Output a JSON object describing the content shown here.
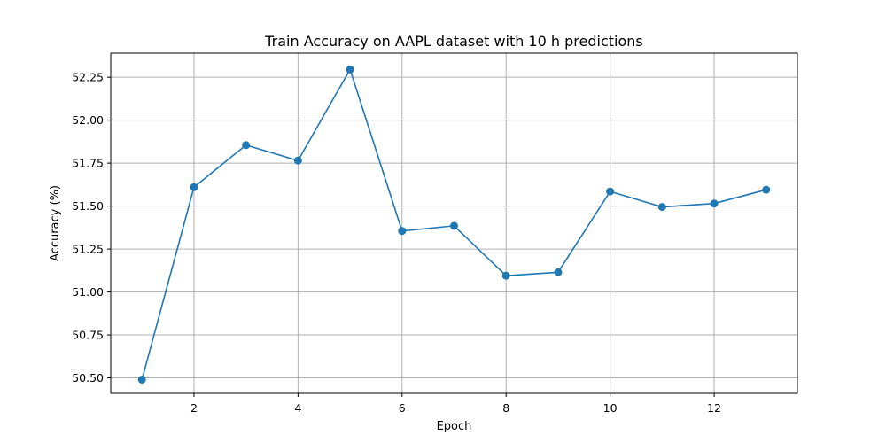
{
  "chart_data": {
    "type": "line",
    "title": "Train Accuracy on AAPL dataset with 10 h predictions",
    "xlabel": "Epoch",
    "ylabel": "Accuracy (%)",
    "xlim": [
      0.4,
      13.6
    ],
    "ylim": [
      50.41,
      52.39
    ],
    "x_ticks": [
      2,
      4,
      6,
      8,
      10,
      12
    ],
    "y_ticks": [
      50.5,
      50.75,
      51.0,
      51.25,
      51.5,
      51.75,
      52.0,
      52.25
    ],
    "x_tick_labels": [
      "2",
      "4",
      "6",
      "8",
      "10",
      "12"
    ],
    "y_tick_labels": [
      "50.50",
      "50.75",
      "51.00",
      "51.25",
      "51.50",
      "51.75",
      "52.00",
      "52.25"
    ],
    "grid": true,
    "marker": "circle",
    "line_color": "#1f77b4",
    "series": [
      {
        "x": [
          1,
          2,
          3,
          4,
          5,
          6,
          7,
          8,
          9,
          10,
          11,
          12,
          13
        ],
        "values": [
          50.49,
          51.61,
          51.855,
          51.765,
          52.295,
          51.355,
          51.385,
          51.095,
          51.115,
          51.585,
          51.495,
          51.515,
          51.595
        ]
      }
    ]
  }
}
